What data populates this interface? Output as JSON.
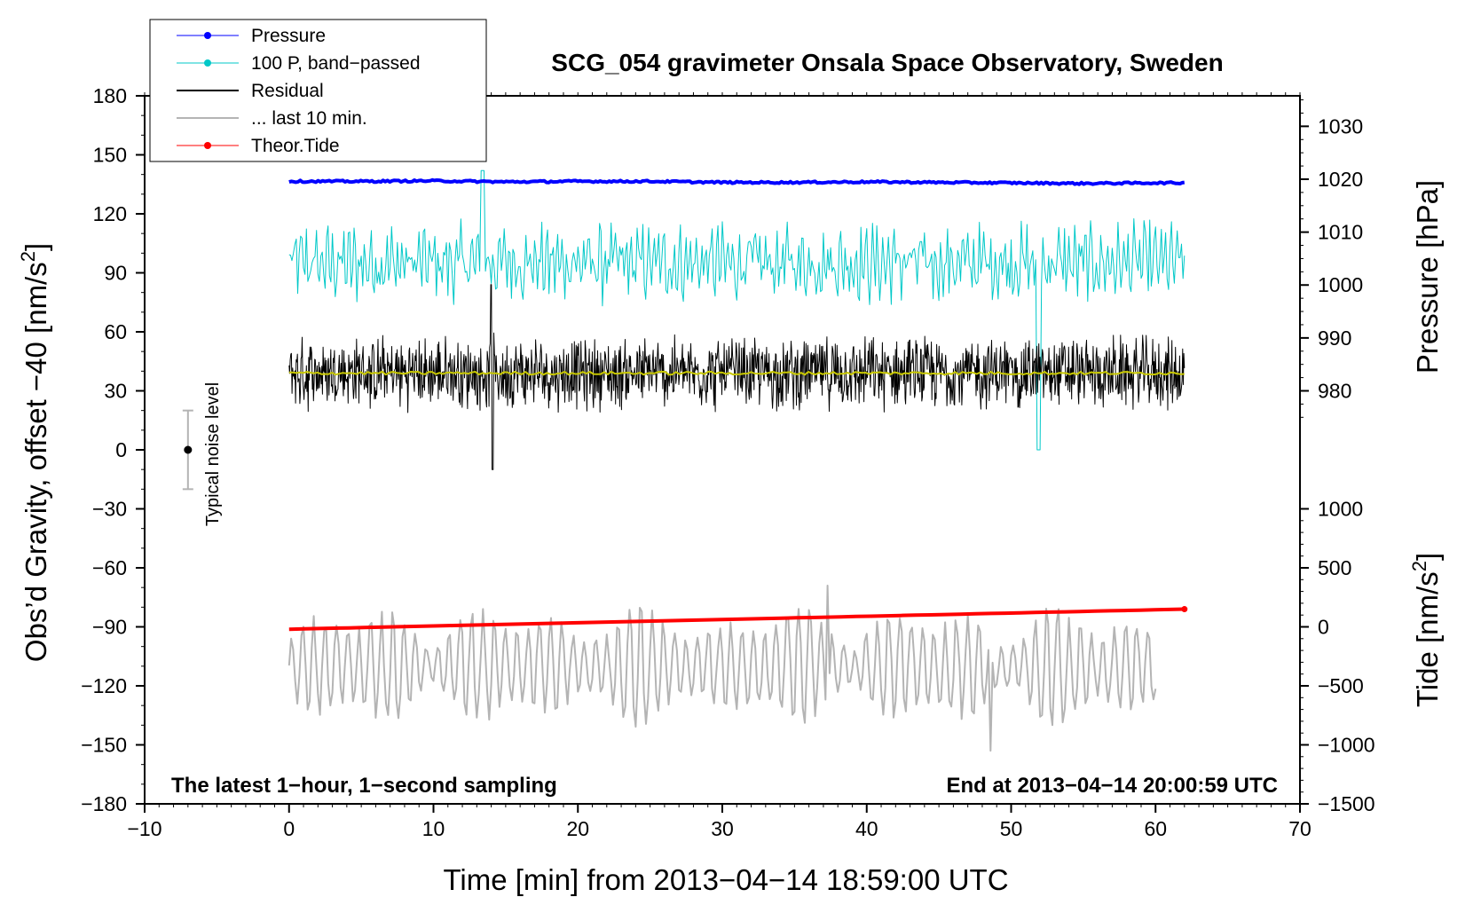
{
  "chart_data": {
    "type": "line",
    "title": "SCG_054 gravimeter Onsala Space Observatory, Sweden",
    "xlabel": "Time [min] from 2013−04−14 18:59:00 UTC",
    "ylabel_left_prefix": "Obs’d Gravity, offset −40 [nm/s",
    "ylabel_left_suffix": "]",
    "ylabel_right_pressure": "Pressure [hPa]",
    "ylabel_right_tide_prefix": "Tide [nm/s",
    "ylabel_right_tide_suffix": "]",
    "unit_superscript": "2",
    "annotation_left": "The latest 1−hour, 1−second sampling",
    "annotation_right": "End at 2013−04−14 20:00:59 UTC",
    "noise_label": "Typical noise level",
    "noise_bar": {
      "x": -7,
      "center": 0,
      "low": -20,
      "high": 20
    },
    "xlim": [
      -10,
      70
    ],
    "ylim": [
      -180,
      180
    ],
    "x_ticks": [
      -10,
      0,
      10,
      20,
      30,
      40,
      50,
      60,
      70
    ],
    "x_tick_labels": [
      "−10",
      "0",
      "10",
      "20",
      "30",
      "40",
      "50",
      "60",
      "70"
    ],
    "y_ticks": [
      -180,
      -150,
      -120,
      -90,
      -60,
      -30,
      0,
      30,
      60,
      90,
      120,
      150,
      180
    ],
    "y_tick_labels": [
      "−180",
      "−150",
      "−120",
      "−90",
      "−60",
      "−30",
      "0",
      "30",
      "60",
      "90",
      "120",
      "150",
      "180"
    ],
    "pressure_axis": {
      "ticks": [
        980,
        990,
        1000,
        1010,
        1020,
        1030
      ],
      "tick_labels": [
        "980",
        "990",
        "1000",
        "1010",
        "1020",
        "1030"
      ],
      "mapping": {
        "value_a": 980,
        "gravity_a": 30,
        "value_b": 1030,
        "gravity_b": 164.5
      }
    },
    "tide_axis": {
      "ticks": [
        -1500,
        -1000,
        -500,
        0,
        500,
        1000
      ],
      "tick_labels": [
        "−1500",
        "−1000",
        "−500",
        "0",
        "500",
        "1000"
      ],
      "mapping": {
        "value_a": -1500,
        "gravity_a": -180,
        "value_b": 1000,
        "gravity_b": -30
      }
    },
    "legend": [
      {
        "label": "Pressure",
        "color": "#0000ff",
        "marker": true
      },
      {
        "label": "100 P, band−passed",
        "color": "#00c8c8",
        "marker": true
      },
      {
        "label": "Residual",
        "color": "#000000",
        "marker": false
      },
      {
        "label": "... last 10 min.",
        "color": "#b4b4b4",
        "marker": false
      },
      {
        "label": "Theor.Tide",
        "color": "#ff0000",
        "marker": true
      }
    ],
    "series": [
      {
        "name": "Pressure",
        "color": "#0000ff",
        "axis": "pressure",
        "x": [
          0,
          5,
          10,
          15,
          20,
          25,
          30,
          35,
          40,
          45,
          50,
          55,
          60,
          62
        ],
        "values": [
          1019.6,
          1019.6,
          1019.7,
          1019.5,
          1019.6,
          1019.6,
          1019.4,
          1019.4,
          1019.5,
          1019.4,
          1019.3,
          1019.2,
          1019.3,
          1019.3
        ]
      },
      {
        "name": "100 P, band-passed",
        "color": "#00c8c8",
        "axis": "gravity",
        "x": [
          0,
          62
        ],
        "mean": 95,
        "amplitude": 17,
        "notable_min": 0,
        "notable_max": 142
      },
      {
        "name": "Residual",
        "color": "#000000",
        "axis": "gravity",
        "x": [
          0,
          62
        ],
        "mean": 39,
        "amplitude": 14,
        "notable_min": -10,
        "notable_max": 84
      },
      {
        "name": "Residual smoothed",
        "color": "#c8c800",
        "axis": "gravity",
        "x": [
          0,
          62
        ],
        "values_mean": 39
      },
      {
        "name": "... last 10 min.",
        "color": "#b4b4b4",
        "axis": "gravity",
        "x": [
          0,
          60
        ],
        "mean": -110,
        "amplitude": 25,
        "notable_min": -153,
        "notable_max": -69
      },
      {
        "name": "Theor.Tide",
        "color": "#ff0000",
        "axis": "tide",
        "x": [
          0,
          62
        ],
        "values": [
          -20,
          150
        ]
      }
    ]
  }
}
